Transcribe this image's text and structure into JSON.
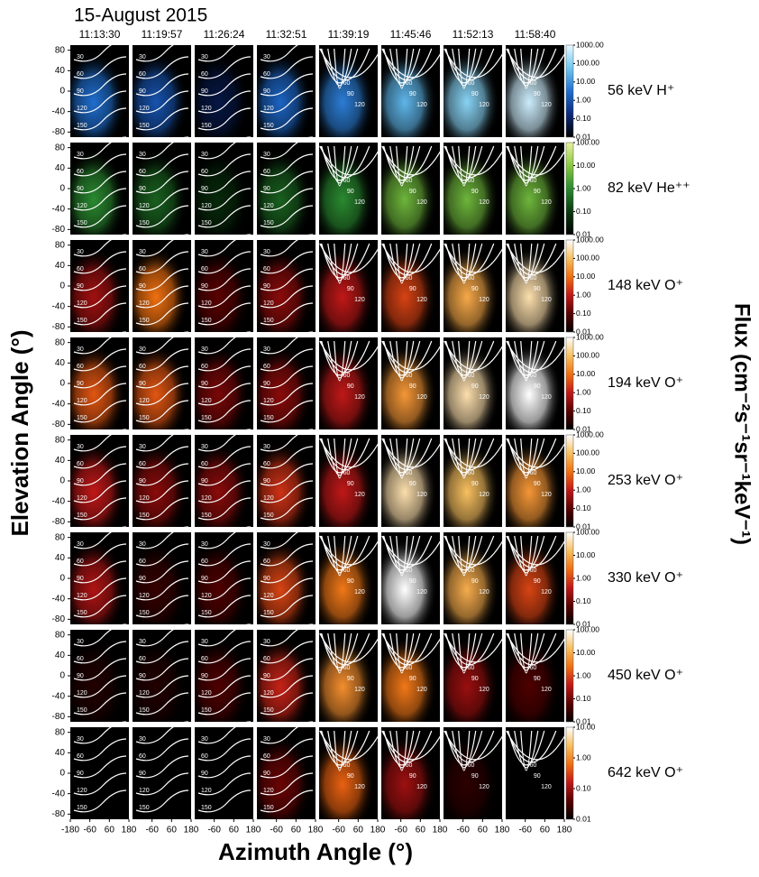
{
  "chart_data": {
    "type": "heatmap",
    "title": "15-August 2015",
    "column_labels": [
      "11:13:30",
      "11:19:57",
      "11:26:24",
      "11:32:51",
      "11:39:19",
      "11:45:46",
      "11:52:13",
      "11:58:40"
    ],
    "xlabel": "Azimuth Angle (°)",
    "ylabel": "Elevation Angle (°)",
    "colorbar_label": "Flux (cm⁻²s⁻¹sr⁻¹keV⁻¹)",
    "xlim": [
      -180,
      180
    ],
    "xticks": [
      -180,
      -60,
      60,
      180
    ],
    "ylim": [
      -90,
      90
    ],
    "yticks": [
      80,
      40,
      0,
      -40,
      -80
    ],
    "contour_labels": [
      30,
      60,
      90,
      120,
      150
    ],
    "log_scale": true,
    "rows": [
      {
        "label": "56 keV H⁺",
        "colormap": [
          "#000000",
          "#0a2a7a",
          "#1f6fd0",
          "#6fc8f0",
          "#e8f8ff"
        ],
        "clim": [
          0.01,
          1000
        ],
        "cticks": [
          {
            "value": 1000,
            "label": "1000.00"
          },
          {
            "value": 100,
            "label": "100.00"
          },
          {
            "value": 10,
            "label": "10.00"
          },
          {
            "value": 1,
            "label": "1.00"
          },
          {
            "value": 0.1,
            "label": "0.10"
          },
          {
            "value": 0.01,
            "label": "0.01"
          }
        ],
        "values": [
          3,
          1,
          0.05,
          2,
          5,
          30,
          100,
          500
        ]
      },
      {
        "label": "82 keV He⁺⁺",
        "colormap": [
          "#000000",
          "#0a3a10",
          "#2a8a30",
          "#8ac840",
          "#e8f0a0"
        ],
        "clim": [
          0.01,
          100
        ],
        "cticks": [
          {
            "value": 100,
            "label": "100.00"
          },
          {
            "value": 10,
            "label": "10.00"
          },
          {
            "value": 1,
            "label": "1.00"
          },
          {
            "value": 0.1,
            "label": "0.10"
          },
          {
            "value": 0.01,
            "label": "0.01"
          }
        ],
        "values": [
          1,
          0.3,
          0.05,
          0.3,
          1,
          5,
          5,
          5
        ]
      },
      {
        "label": "148 keV O⁺",
        "colormap": [
          "#000000",
          "#5a0000",
          "#c01818",
          "#f07010",
          "#f8c060",
          "#ffffff"
        ],
        "clim": [
          0.01,
          1000
        ],
        "cticks": [
          {
            "value": 1000,
            "label": "1000.00"
          },
          {
            "value": 100,
            "label": "100.00"
          },
          {
            "value": 10,
            "label": "10.00"
          },
          {
            "value": 1,
            "label": "1.00"
          },
          {
            "value": 0.1,
            "label": "0.10"
          },
          {
            "value": 0.01,
            "label": "0.01"
          }
        ],
        "values": [
          0.5,
          10,
          0.1,
          0.3,
          1,
          3,
          50,
          300
        ]
      },
      {
        "label": "194 keV O⁺",
        "colormap": [
          "#000000",
          "#5a0000",
          "#c01818",
          "#f07010",
          "#f8c060",
          "#ffffff"
        ],
        "clim": [
          0.01,
          1000
        ],
        "cticks": [
          {
            "value": 1000,
            "label": "1000.00"
          },
          {
            "value": 100,
            "label": "100.00"
          },
          {
            "value": 10,
            "label": "10.00"
          },
          {
            "value": 1,
            "label": "1.00"
          },
          {
            "value": 0.1,
            "label": "0.10"
          },
          {
            "value": 0.01,
            "label": "0.01"
          }
        ],
        "values": [
          5,
          5,
          0.2,
          0.3,
          1,
          30,
          300,
          1000
        ]
      },
      {
        "label": "253 keV O⁺",
        "colormap": [
          "#000000",
          "#5a0000",
          "#c01818",
          "#f07010",
          "#f8c060",
          "#ffffff"
        ],
        "clim": [
          0.01,
          1000
        ],
        "cticks": [
          {
            "value": 1000,
            "label": "1000.00"
          },
          {
            "value": 100,
            "label": "100.00"
          },
          {
            "value": 10,
            "label": "10.00"
          },
          {
            "value": 1,
            "label": "1.00"
          },
          {
            "value": 0.1,
            "label": "0.10"
          },
          {
            "value": 0.01,
            "label": "0.01"
          }
        ],
        "values": [
          1,
          0.3,
          0.3,
          2,
          1,
          300,
          100,
          30
        ]
      },
      {
        "label": "330 keV O⁺",
        "colormap": [
          "#000000",
          "#5a0000",
          "#c01818",
          "#f07010",
          "#f8c060",
          "#ffffff"
        ],
        "clim": [
          0.01,
          100
        ],
        "cticks": [
          {
            "value": 100,
            "label": "100.00"
          },
          {
            "value": 10,
            "label": "10.00"
          },
          {
            "value": 1,
            "label": "1.00"
          },
          {
            "value": 0.1,
            "label": "0.10"
          },
          {
            "value": 0.01,
            "label": "0.01"
          }
        ],
        "values": [
          0.3,
          0.03,
          0.05,
          1,
          3,
          100,
          10,
          1
        ]
      },
      {
        "label": "450 keV O⁺",
        "colormap": [
          "#000000",
          "#5a0000",
          "#c01818",
          "#f07010",
          "#f8c060",
          "#ffffff"
        ],
        "clim": [
          0.01,
          100
        ],
        "cticks": [
          {
            "value": 100,
            "label": "100.00"
          },
          {
            "value": 10,
            "label": "10.00"
          },
          {
            "value": 1,
            "label": "1.00"
          },
          {
            "value": 0.1,
            "label": "0.10"
          },
          {
            "value": 0.01,
            "label": "0.01"
          }
        ],
        "values": [
          0.02,
          0.02,
          0.05,
          0.5,
          5,
          3,
          0.2,
          0.05
        ]
      },
      {
        "label": "642 keV O⁺",
        "colormap": [
          "#000000",
          "#5a0000",
          "#c01818",
          "#f07010",
          "#f8c060",
          "#ffffff"
        ],
        "clim": [
          0.01,
          10
        ],
        "cticks": [
          {
            "value": 10,
            "label": "10.00"
          },
          {
            "value": 1,
            "label": "1.00"
          },
          {
            "value": 0.1,
            "label": "0.10"
          },
          {
            "value": 0.01,
            "label": "0.01"
          }
        ],
        "values": [
          0.01,
          0.01,
          0.01,
          0.05,
          0.5,
          0.1,
          0.02,
          0.01
        ]
      }
    ]
  }
}
